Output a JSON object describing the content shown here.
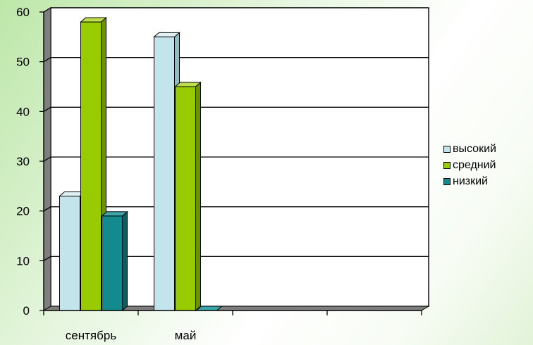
{
  "chart_data": {
    "type": "bar",
    "categories": [
      "сентябрь",
      "май",
      "",
      ""
    ],
    "series": [
      {
        "name": "высокий",
        "values": [
          23,
          55,
          null,
          null
        ],
        "color": "#c3e4ea",
        "side": "#93bcc2",
        "top": "#dff1f4"
      },
      {
        "name": "средний",
        "values": [
          58,
          45,
          null,
          null
        ],
        "color": "#99cc00",
        "side": "#6c9200",
        "top": "#bddf4c"
      },
      {
        "name": "низкий",
        "values": [
          19,
          0,
          null,
          null
        ],
        "color": "#138a8e",
        "side": "#0a5e61",
        "top": "#3aa8ab"
      }
    ],
    "y_ticks": [
      0,
      10,
      20,
      30,
      40,
      50,
      60
    ],
    "ylim": [
      0,
      60
    ],
    "grid": true,
    "legend_position": "right",
    "colors": {
      "grid": "#000000",
      "wall": "#ffffff",
      "floor": "#7f7f7f",
      "side_wall": "#7f7f7f"
    }
  }
}
